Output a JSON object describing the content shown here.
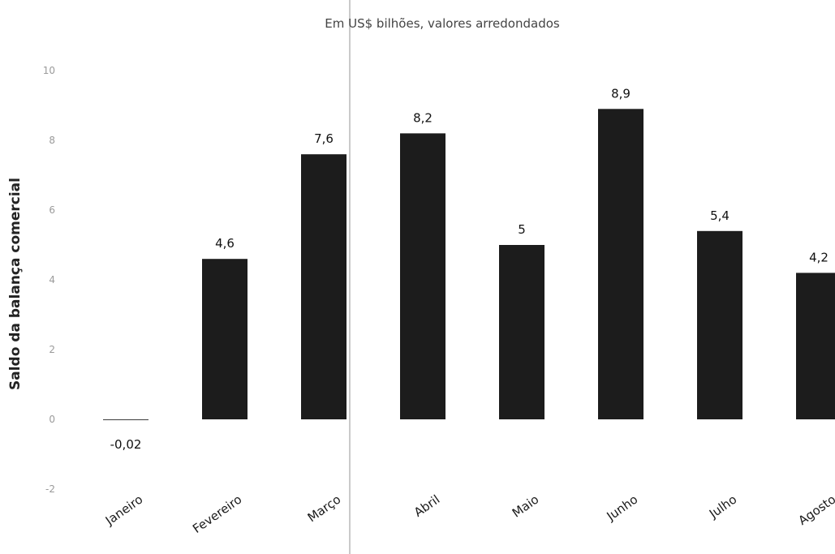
{
  "chart_data": {
    "type": "bar",
    "title": "",
    "subtitle": "Em US$ bilhões, valores arredondados",
    "xlabel": "",
    "ylabel": "Saldo da balança comercial",
    "categories": [
      "Janeiro",
      "Fevereiro",
      "Março",
      "Abril",
      "Maio",
      "Junho",
      "Julho",
      "Agosto"
    ],
    "values": [
      -0.02,
      4.6,
      7.6,
      8.2,
      5,
      8.9,
      5.4,
      4.2
    ],
    "data_labels": [
      "-0,02",
      "4,6",
      "7,6",
      "8,2",
      "5",
      "8,9",
      "5,4",
      "4,2"
    ],
    "ylim": [
      -2,
      10
    ],
    "yticks": [
      -2,
      0,
      2,
      4,
      6,
      8,
      10
    ],
    "ytick_labels": [
      "-2",
      "0",
      "2",
      "4",
      "6",
      "8",
      "10"
    ],
    "grid": false,
    "legend": "none",
    "bar_color": "#1c1c1c"
  }
}
